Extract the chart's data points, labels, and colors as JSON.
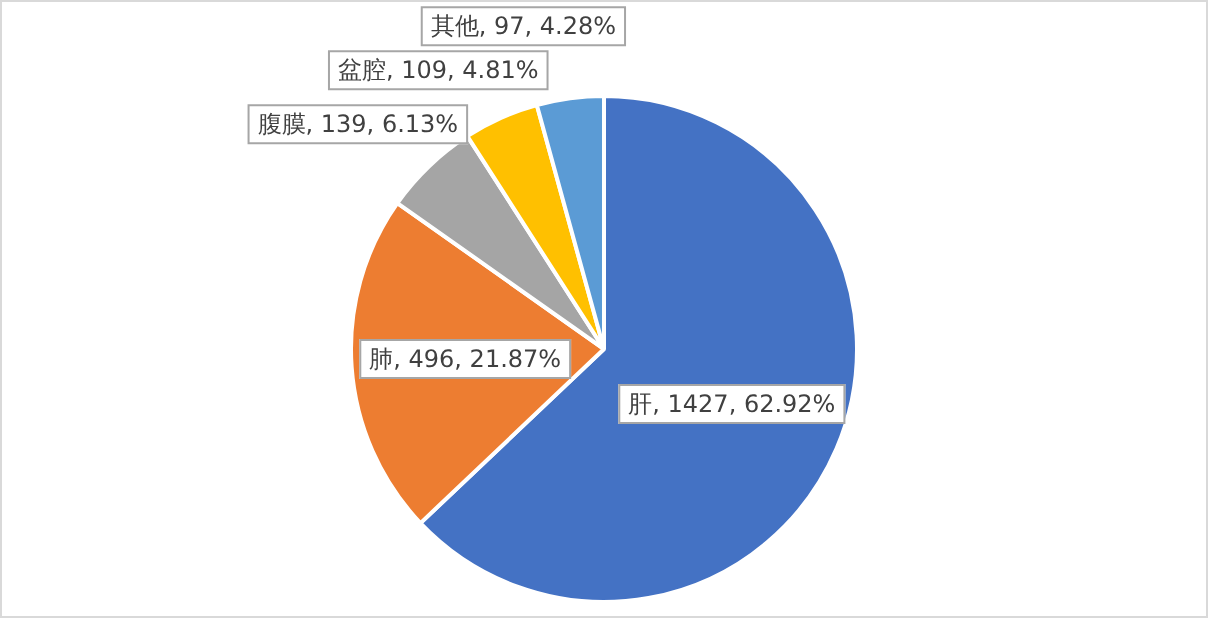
{
  "chart_data": {
    "type": "pie",
    "categories": [
      "肝",
      "肺",
      "腹膜",
      "盆腔",
      "其他"
    ],
    "values": [
      1427,
      496,
      139,
      109,
      97
    ],
    "colors": [
      "#4472c4",
      "#ed7d31",
      "#a5a5a5",
      "#ffc000",
      "#5b9bd5"
    ],
    "value_labels": [
      ", 1427, 62.92%",
      ", 496, 21.87%",
      ", 139, 6.13%",
      ", 109, 4.81%",
      ", 97, 4.28%"
    ],
    "legend": false
  }
}
